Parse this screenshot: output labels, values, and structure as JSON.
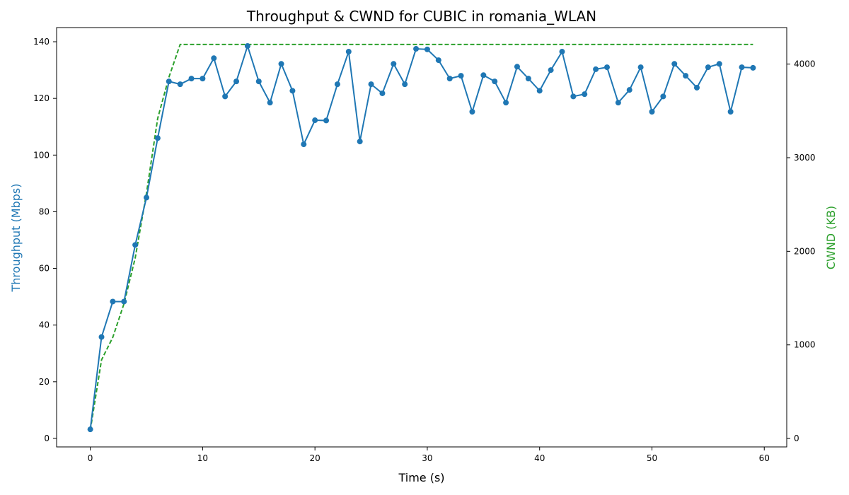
{
  "chart_data": {
    "type": "line",
    "title": "Throughput & CWND for CUBIC in romania_WLAN",
    "xlabel": "Time (s)",
    "ylabel_left": "Throughput (Mbps)",
    "ylabel_right": "CWND (KB)",
    "xlim": [
      -3,
      62
    ],
    "ylim_left": [
      -3,
      145
    ],
    "ylim_right": [
      -90,
      4390
    ],
    "x_ticks": [
      0,
      10,
      20,
      30,
      40,
      50,
      60
    ],
    "y_left_ticks": [
      0,
      20,
      40,
      60,
      80,
      100,
      120,
      140
    ],
    "y_right_ticks": [
      0,
      1000,
      2000,
      3000,
      4000
    ],
    "grid": false,
    "colors": {
      "throughput": "#1f77b4",
      "cwnd": "#2ca02c",
      "axes": "#000000"
    },
    "series": [
      {
        "axis": "left",
        "style": "solid-markers",
        "x": [
          0,
          1,
          2,
          3,
          4,
          5,
          6,
          7,
          8,
          9,
          10,
          11,
          12,
          13,
          14,
          15,
          16,
          17,
          18,
          19,
          20,
          21,
          22,
          23,
          24,
          25,
          26,
          27,
          28,
          29,
          30,
          31,
          32,
          33,
          34,
          35,
          36,
          37,
          38,
          39,
          40,
          41,
          42,
          43,
          44,
          45,
          46,
          47,
          48,
          49,
          50,
          51,
          52,
          53,
          54,
          55,
          56,
          57,
          58,
          59
        ],
        "values": [
          3.2,
          35.8,
          48.3,
          48.3,
          68.3,
          85.0,
          106.0,
          126.0,
          125.0,
          127.0,
          127.0,
          134.2,
          120.7,
          126.0,
          138.5,
          126.0,
          118.5,
          132.2,
          122.7,
          103.8,
          112.3,
          112.2,
          125.0,
          136.5,
          104.8,
          125.0,
          121.8,
          132.2,
          125.0,
          137.5,
          137.3,
          133.5,
          127.0,
          128.0,
          115.3,
          128.2,
          126.0,
          118.5,
          131.2,
          127.0,
          122.7,
          130.0,
          136.5,
          120.7,
          121.5,
          130.3,
          131.0,
          118.5,
          123.0,
          131.0,
          115.3,
          120.7,
          132.2,
          128.0,
          123.8,
          131.0,
          132.2,
          115.3,
          131.0,
          130.8
        ]
      },
      {
        "axis": "right",
        "style": "dashed",
        "x": [
          0,
          1,
          2,
          3,
          4,
          5,
          6,
          7,
          8,
          9,
          59
        ],
        "values": [
          90,
          840,
          1080,
          1440,
          1930,
          2620,
          3420,
          3860,
          4210,
          4210,
          4210
        ]
      }
    ]
  }
}
